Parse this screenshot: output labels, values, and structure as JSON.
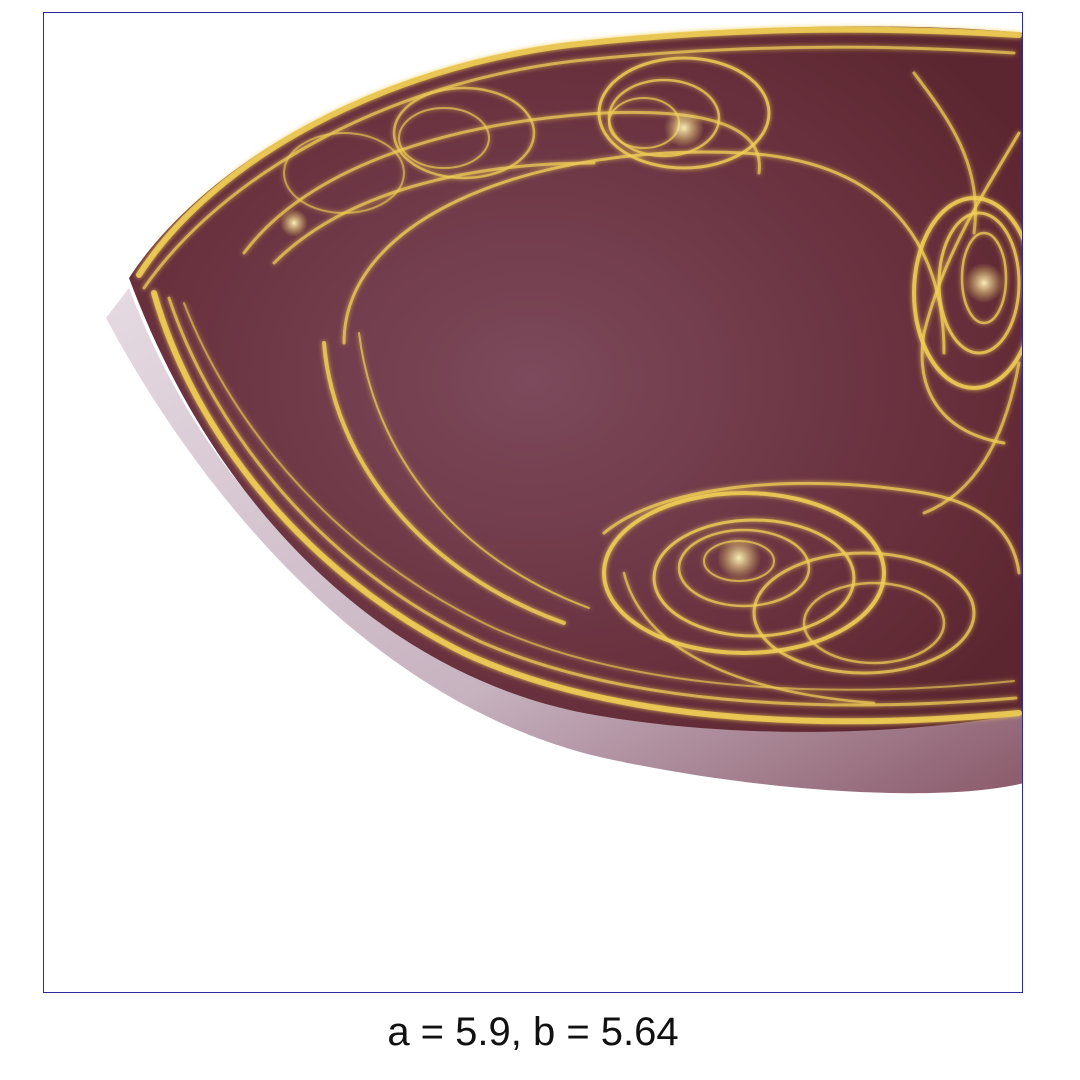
{
  "caption": "a = 5.9, b = 5.64",
  "colors": {
    "frame_border": "#2a2a9a",
    "body_fill": "#6e3440",
    "body_highlight": "#7a4656",
    "rim_shadow": "#c9b3c0",
    "filament": "#f3d25a",
    "filament_glow": "#fff2a8"
  }
}
